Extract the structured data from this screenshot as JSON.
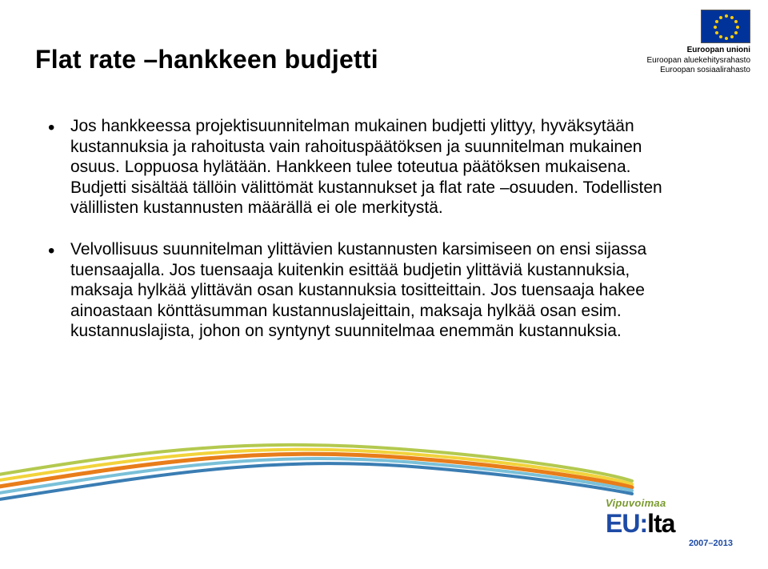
{
  "title": "Flat rate –hankkeen budjetti",
  "bullets": [
    "Jos hankkeessa projektisuunnitelman mukainen budjetti ylittyy, hyväksytään kustannuksia ja rahoitusta vain rahoituspäätöksen ja suunnitelman mukainen osuus. Loppuosa hylätään. Hankkeen tulee toteutua päätöksen mukaisena. Budjetti sisältää tällöin välittömät kustannukset ja flat rate –osuuden. Todellisten välillisten kustannusten määrällä ei ole merkitystä.",
    "Velvollisuus suunnitelman ylittävien kustannusten karsimiseen on ensi sijassa tuensaajalla. Jos tuensaaja kuitenkin esittää budjetin ylittäviä kustannuksia, maksaja hylkää ylittävän osan kustannuksia tositteittain. Jos tuensaaja hakee ainoastaan könttäsumman kustannuslajeittain, maksaja hylkää osan esim. kustannuslajista, johon on syntynyt suunnitelmaa enemmän kustannuksia."
  ],
  "eu": {
    "line1": "Euroopan unioni",
    "line2": "Euroopan aluekehitysrahasto",
    "line3": "Euroopan sosiaalirahasto",
    "flag_bg": "#003399",
    "star_color": "#ffcc00"
  },
  "vipu": {
    "top": "Vipuvoimaa",
    "main_blue": "EU",
    "main_sep": ":",
    "main_black": "lta",
    "years": "2007–2013",
    "green": "#7a9a2f",
    "blue": "#1d4aa5"
  },
  "swoosh": {
    "colors": [
      "#b3c94f",
      "#f2d33b",
      "#e87d1a",
      "#7ac0d8",
      "#3a7db3"
    ]
  }
}
